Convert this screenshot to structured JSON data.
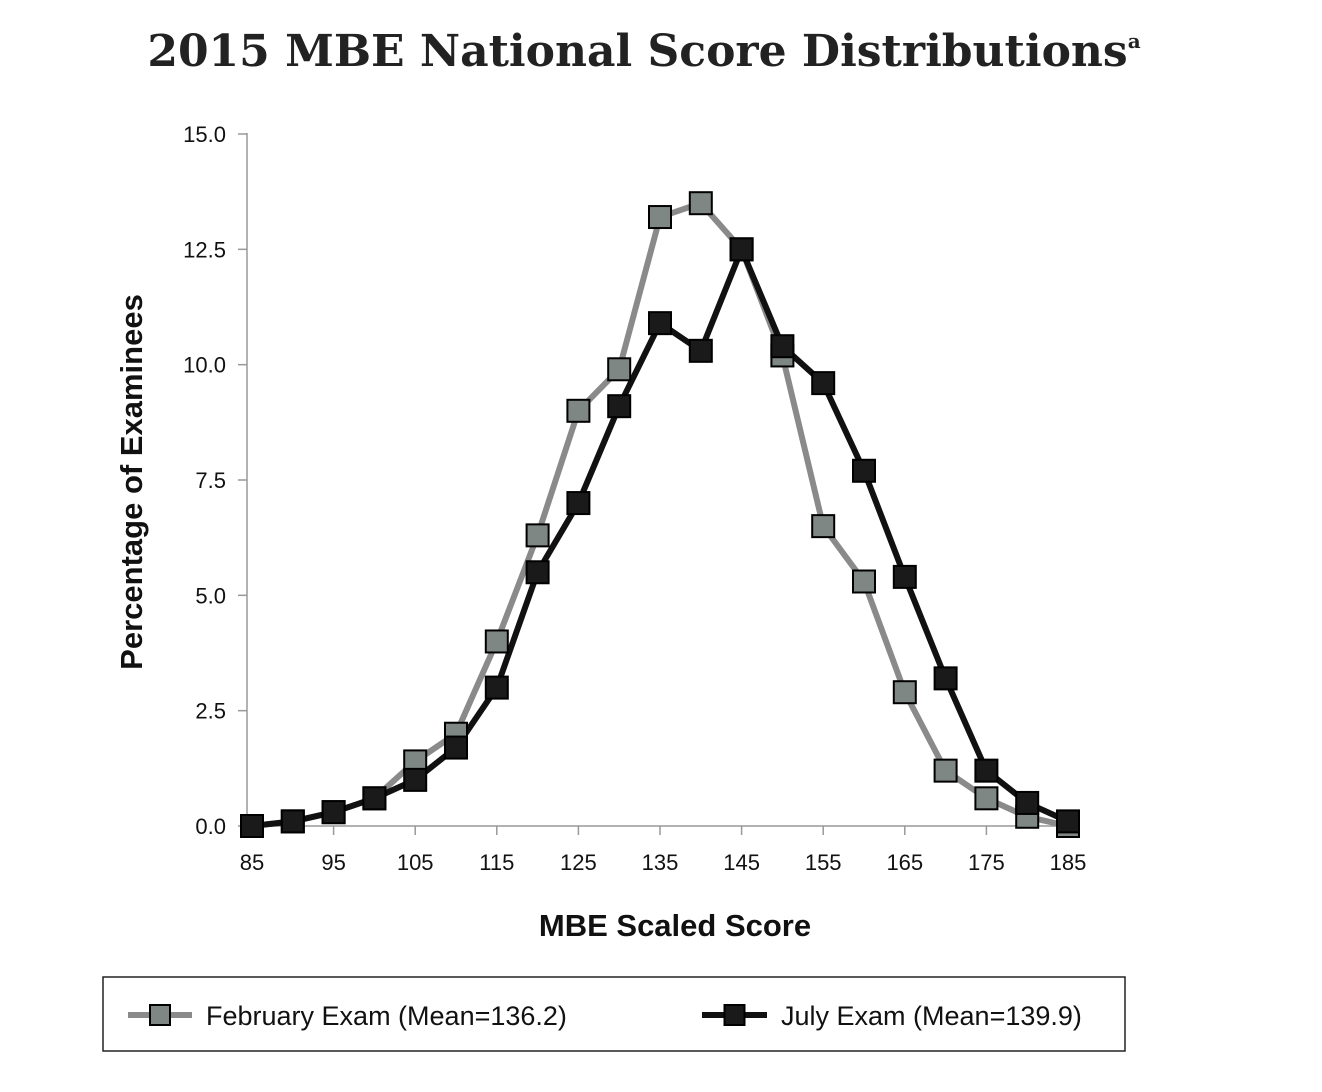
{
  "chart_data": {
    "type": "line",
    "title": "2015 MBE National Score Distributions",
    "title_superscript": "a",
    "xlabel": "MBE Scaled Score",
    "ylabel": "Percentage of Examinees",
    "x": [
      85,
      90,
      95,
      100,
      105,
      110,
      115,
      120,
      125,
      130,
      135,
      140,
      145,
      150,
      155,
      160,
      165,
      170,
      175,
      180,
      185
    ],
    "x_ticks": [
      85,
      95,
      105,
      115,
      125,
      135,
      145,
      155,
      165,
      175,
      185
    ],
    "y_ticks": [
      "0.0",
      "2.5",
      "5.0",
      "7.5",
      "10.0",
      "12.5",
      "15.0"
    ],
    "xlim": [
      85,
      185
    ],
    "ylim": [
      0,
      15
    ],
    "grid": false,
    "legend_position": "bottom",
    "series": [
      {
        "name": "February Exam (Mean=136.2)",
        "color": "#7f8784",
        "line_color": "#8a8a8a",
        "values": [
          0.0,
          0.1,
          0.3,
          0.6,
          1.4,
          2.0,
          4.0,
          6.3,
          9.0,
          9.9,
          13.2,
          13.5,
          12.5,
          10.2,
          6.5,
          5.3,
          2.9,
          1.2,
          0.6,
          0.2,
          0.0
        ]
      },
      {
        "name": "July Exam (Mean=139.9)",
        "color": "#1a1a1a",
        "line_color": "#111111",
        "values": [
          0.0,
          0.1,
          0.3,
          0.6,
          1.0,
          1.7,
          3.0,
          5.5,
          7.0,
          9.1,
          10.9,
          10.3,
          12.5,
          10.4,
          9.6,
          7.7,
          5.4,
          3.2,
          1.2,
          0.5,
          0.1
        ]
      }
    ]
  }
}
